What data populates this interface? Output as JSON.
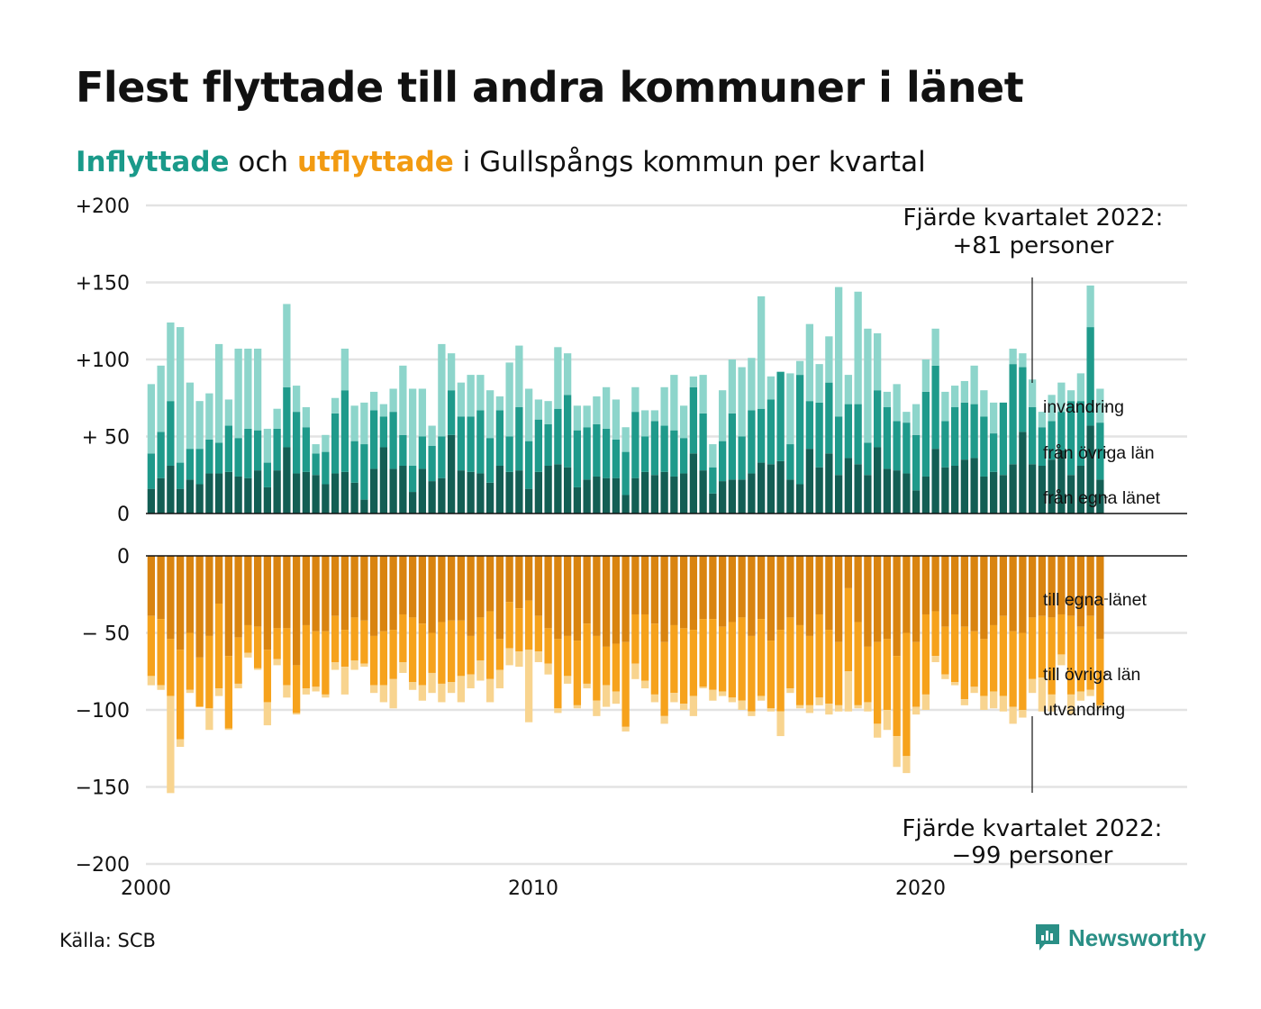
{
  "title": "Flest flyttade till andra kommuner i länet",
  "subtitle": {
    "in_word": "Inflyttade",
    "mid": "och",
    "out_word": "utflyttade",
    "rest": "i Gullspångs kommun per kvartal"
  },
  "source": "Källa: SCB",
  "brand": "Newsworthy",
  "colors": {
    "in_own": "#135e54",
    "in_other": "#1f9a8b",
    "in_imm": "#8dd5cb",
    "out_own": "#d98410",
    "out_other": "#f6a21c",
    "out_emig": "#f8d48f",
    "grid": "#e3e3e3",
    "brand": "#2a8f86"
  },
  "chart_data": [
    {
      "type": "bar",
      "stacked": true,
      "panel": "inflyttade",
      "x_start_year": 2000,
      "quarters_per_year": 4,
      "yticks": [
        "+200",
        "+150",
        "+100",
        "+ 50",
        "0"
      ],
      "ytick_values": [
        200,
        150,
        100,
        50,
        0
      ],
      "ylim": [
        0,
        200
      ],
      "series": [
        {
          "name": "från egna länet",
          "values": [
            16,
            23,
            31,
            16,
            22,
            19,
            26,
            26,
            27,
            24,
            23,
            28,
            17,
            28,
            43,
            26,
            27,
            25,
            19,
            26,
            27,
            20,
            9,
            29,
            43,
            29,
            31,
            14,
            29,
            21,
            23,
            51,
            28,
            27,
            26,
            20,
            31,
            27,
            28,
            16,
            27,
            31,
            32,
            30,
            17,
            22,
            24,
            23,
            23,
            12,
            23,
            27,
            25,
            27,
            24,
            26,
            39,
            28,
            13,
            21,
            22,
            22,
            26,
            33,
            32,
            34,
            22,
            19,
            42,
            30,
            39,
            25,
            36,
            32,
            25,
            43,
            29,
            28,
            26,
            15,
            24,
            42,
            30,
            31,
            35,
            36,
            24,
            27,
            25,
            32,
            53,
            32,
            31,
            35,
            41,
            25,
            31,
            57,
            22
          ]
        },
        {
          "name": "från övriga län",
          "values": [
            23,
            30,
            42,
            17,
            20,
            23,
            22,
            20,
            30,
            25,
            32,
            26,
            16,
            27,
            39,
            40,
            29,
            14,
            21,
            39,
            53,
            27,
            36,
            38,
            20,
            37,
            20,
            17,
            21,
            23,
            27,
            29,
            35,
            36,
            41,
            29,
            36,
            23,
            41,
            31,
            34,
            27,
            36,
            47,
            37,
            34,
            34,
            32,
            25,
            28,
            43,
            23,
            35,
            30,
            30,
            23,
            43,
            37,
            17,
            26,
            43,
            28,
            41,
            35,
            42,
            58,
            23,
            71,
            31,
            42,
            46,
            38,
            35,
            39,
            21,
            37,
            40,
            32,
            33,
            36,
            55,
            54,
            30,
            38,
            37,
            35,
            39,
            25,
            47,
            65,
            42,
            37,
            25,
            25,
            25,
            48,
            42,
            64,
            37
          ]
        },
        {
          "name": "invandring",
          "values": [
            45,
            43,
            51,
            88,
            43,
            31,
            30,
            64,
            17,
            58,
            52,
            53,
            22,
            13,
            54,
            17,
            13,
            6,
            11,
            10,
            27,
            23,
            27,
            12,
            8,
            15,
            45,
            50,
            31,
            13,
            60,
            24,
            22,
            27,
            23,
            31,
            9,
            48,
            40,
            34,
            13,
            15,
            40,
            27,
            16,
            14,
            18,
            27,
            26,
            16,
            16,
            17,
            7,
            25,
            36,
            21,
            7,
            25,
            15,
            33,
            35,
            45,
            34,
            73,
            15,
            0,
            46,
            9,
            50,
            25,
            30,
            84,
            19,
            73,
            74,
            37,
            10,
            24,
            7,
            20,
            21,
            24,
            19,
            14,
            14,
            25,
            17,
            20,
            0,
            10,
            9,
            18,
            10,
            17,
            19,
            7,
            18,
            27,
            22
          ]
        }
      ]
    },
    {
      "type": "bar",
      "stacked": true,
      "panel": "utflyttade",
      "x_start_year": 2000,
      "quarters_per_year": 4,
      "xticks": [
        "2000",
        "2010",
        "2020"
      ],
      "xtick_values": [
        2000,
        2010,
        2020
      ],
      "yticks": [
        "0",
        "− 50",
        "−100",
        "−150",
        "−200"
      ],
      "ytick_values": [
        0,
        -50,
        -100,
        -150,
        -200
      ],
      "ylim": [
        -200,
        0
      ],
      "series": [
        {
          "name": "till egna länet",
          "values": [
            -39,
            -41,
            -54,
            -61,
            -50,
            -66,
            -52,
            -31,
            -65,
            -53,
            -45,
            -46,
            -61,
            -47,
            -47,
            -71,
            -45,
            -49,
            -49,
            -39,
            -48,
            -40,
            -42,
            -52,
            -49,
            -48,
            -38,
            -40,
            -44,
            -50,
            -43,
            -42,
            -42,
            -52,
            -40,
            -36,
            -54,
            -30,
            -34,
            -29,
            -39,
            -47,
            -54,
            -52,
            -55,
            -44,
            -52,
            -59,
            -57,
            -56,
            -38,
            -38,
            -44,
            -56,
            -45,
            -47,
            -48,
            -41,
            -41,
            -46,
            -43,
            -40,
            -52,
            -41,
            -55,
            -48,
            -40,
            -45,
            -52,
            -38,
            -48,
            -56,
            -21,
            -43,
            -59,
            -56,
            -54,
            -65,
            -50,
            -56,
            -38,
            -36,
            -46,
            -38,
            -46,
            -49,
            -54,
            -45,
            -39,
            -49,
            -50,
            -40,
            -39,
            -40,
            -38,
            -39,
            -46,
            -39,
            -54
          ]
        },
        {
          "name": "till övriga län",
          "values": [
            -39,
            -43,
            -37,
            -58,
            -37,
            -32,
            -47,
            -55,
            -47,
            -30,
            -18,
            -27,
            -34,
            -20,
            -37,
            -31,
            -41,
            -36,
            -41,
            -30,
            -24,
            -28,
            -28,
            -32,
            -35,
            -32,
            -31,
            -42,
            -40,
            -26,
            -40,
            -40,
            -36,
            -25,
            -28,
            -44,
            -20,
            -30,
            -28,
            -32,
            -23,
            -23,
            -45,
            -26,
            -42,
            -39,
            -42,
            -25,
            -31,
            -55,
            -32,
            -43,
            -46,
            -48,
            -44,
            -49,
            -43,
            -44,
            -46,
            -42,
            -49,
            -54,
            -49,
            -50,
            -44,
            -53,
            -46,
            -52,
            -45,
            -54,
            -48,
            -41,
            -54,
            -54,
            -36,
            -53,
            -46,
            -52,
            -80,
            -42,
            -52,
            -29,
            -31,
            -44,
            -47,
            -36,
            -37,
            -43,
            -52,
            -49,
            -50,
            -40,
            -40,
            -50,
            -26,
            -51,
            -42,
            -48,
            -43
          ]
        },
        {
          "name": "utvandring",
          "values": [
            -6,
            -3,
            -63,
            -5,
            -2,
            0,
            -14,
            -5,
            -1,
            -3,
            -3,
            -1,
            -15,
            -4,
            -8,
            -1,
            -4,
            -3,
            -2,
            -5,
            -18,
            -6,
            -2,
            -5,
            -11,
            -19,
            -7,
            -5,
            -10,
            -13,
            -12,
            -7,
            -17,
            -9,
            -13,
            -15,
            -12,
            -11,
            -10,
            -47,
            -7,
            -7,
            -3,
            -5,
            -2,
            -3,
            -10,
            -14,
            -8,
            -3,
            -10,
            -5,
            -5,
            -5,
            -6,
            -4,
            -13,
            -1,
            -7,
            -3,
            -3,
            -6,
            -3,
            -3,
            -2,
            -16,
            -3,
            -2,
            -5,
            -5,
            -7,
            -4,
            -26,
            -2,
            -6,
            -9,
            -13,
            -20,
            -11,
            -5,
            -10,
            -4,
            -3,
            -2,
            -4,
            -4,
            -9,
            -11,
            -10,
            -11,
            -5,
            -9,
            -22,
            -11,
            -7,
            -13,
            -6,
            -4,
            -2
          ]
        }
      ]
    }
  ],
  "annotations": {
    "top": {
      "line1": "Fjärde kvartalet 2022:",
      "line2": "+81 personer"
    },
    "bottom": {
      "line1": "Fjärde kvartalet 2022:",
      "line2": "−99 personer"
    }
  }
}
